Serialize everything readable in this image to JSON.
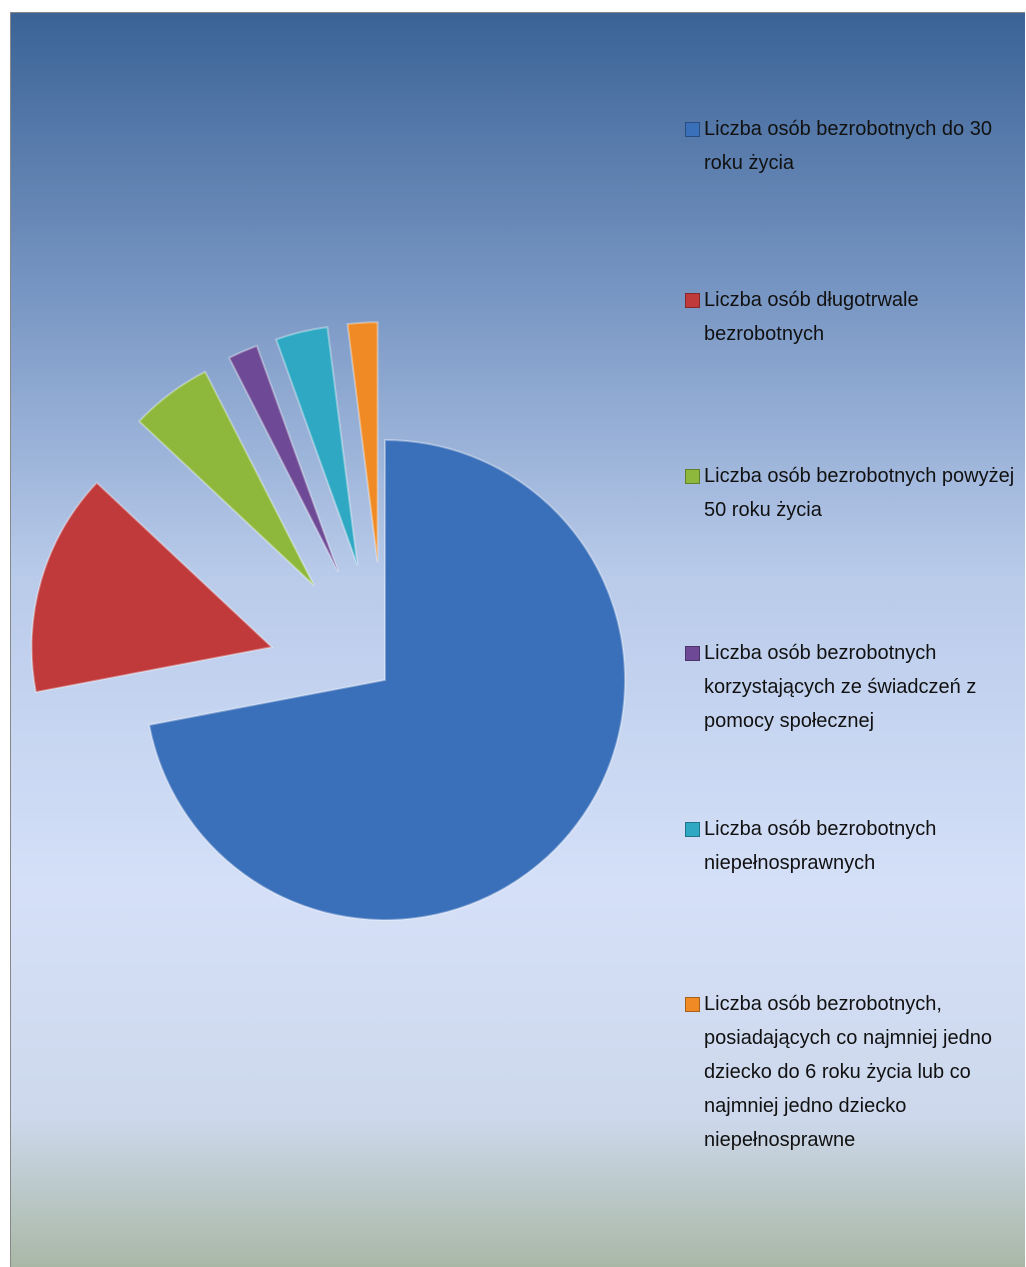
{
  "chart_data": {
    "type": "pie",
    "categories": [
      "Liczba osób bezrobotnych do 30 roku życia",
      "Liczba osób długotrwale bezrobotnych",
      "Liczba osób bezrobotnych powyżej 50 roku życia",
      "Liczba osób bezrobotnych korzystających ze świadczeń z pomocy społecznej",
      "Liczba osób bezrobotnych niepełnosprawnych",
      "Liczba osób bezrobotnych, posiadających co najmniej jedno dziecko do 6 roku życia lub co najmniej jedno dziecko niepełnosprawne"
    ],
    "values": [
      72,
      15,
      5.5,
      2,
      3.5,
      2
    ],
    "colors": [
      "#3a6fba",
      "#c0393b",
      "#8db83b",
      "#6e4a96",
      "#2fa8c4",
      "#f08a24"
    ],
    "legend": "right"
  }
}
